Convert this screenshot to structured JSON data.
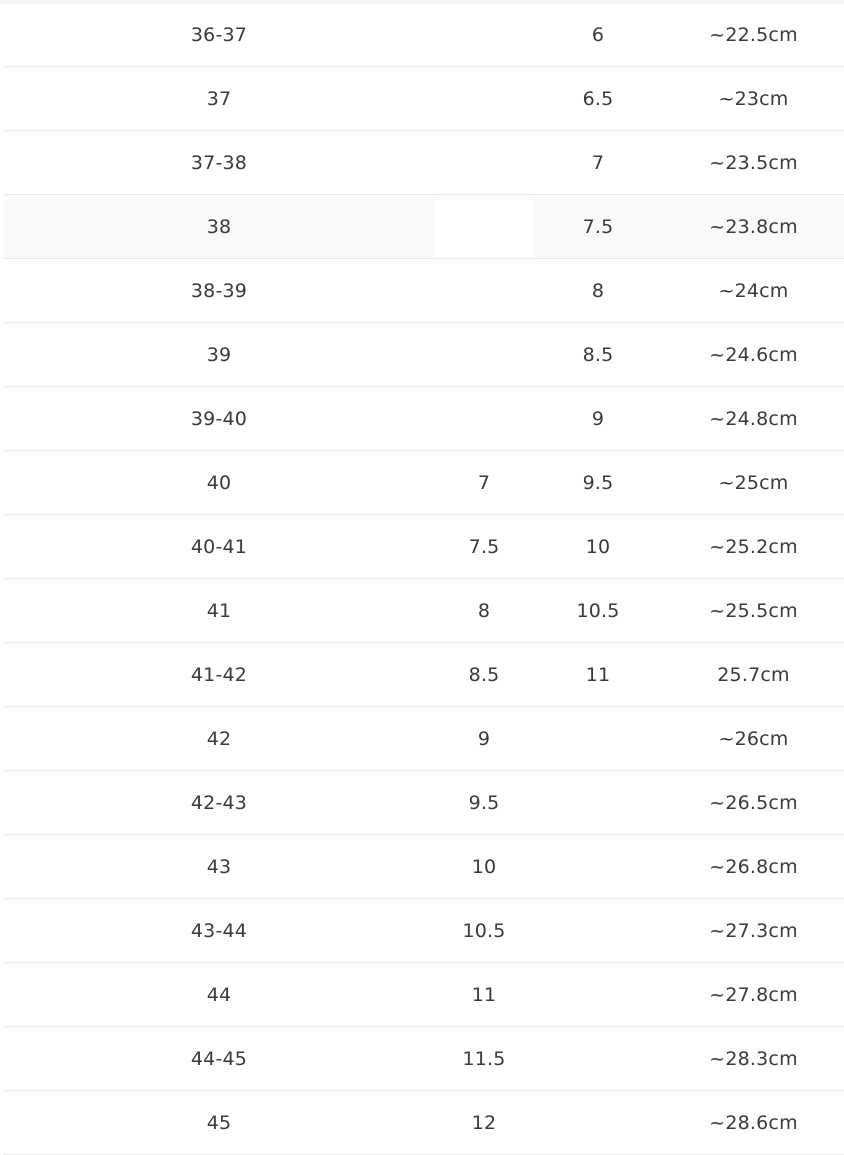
{
  "size_chart": {
    "rows": [
      {
        "eu": "36-37",
        "uk": "",
        "us": "6",
        "length": "~22.5cm"
      },
      {
        "eu": "37",
        "uk": "",
        "us": "6.5",
        "length": "~23cm"
      },
      {
        "eu": "37-38",
        "uk": "",
        "us": "7",
        "length": "~23.5cm"
      },
      {
        "eu": "38",
        "uk": "",
        "us": "7.5",
        "length": "~23.8cm"
      },
      {
        "eu": "38-39",
        "uk": "",
        "us": "8",
        "length": "~24cm"
      },
      {
        "eu": "39",
        "uk": "",
        "us": "8.5",
        "length": "~24.6cm"
      },
      {
        "eu": "39-40",
        "uk": "",
        "us": "9",
        "length": "~24.8cm"
      },
      {
        "eu": "40",
        "uk": "7",
        "us": "9.5",
        "length": "~25cm"
      },
      {
        "eu": "40-41",
        "uk": "7.5",
        "us": "10",
        "length": "~25.2cm"
      },
      {
        "eu": "41",
        "uk": "8",
        "us": "10.5",
        "length": "~25.5cm"
      },
      {
        "eu": "41-42",
        "uk": "8.5",
        "us": "11",
        "length": "25.7cm"
      },
      {
        "eu": "42",
        "uk": "9",
        "us": "",
        "length": "~26cm"
      },
      {
        "eu": "42-43",
        "uk": "9.5",
        "us": "",
        "length": "~26.5cm"
      },
      {
        "eu": "43",
        "uk": "10",
        "us": "",
        "length": "~26.8cm"
      },
      {
        "eu": "43-44",
        "uk": "10.5",
        "us": "",
        "length": "~27.3cm"
      },
      {
        "eu": "44",
        "uk": "11",
        "us": "",
        "length": "~27.8cm"
      },
      {
        "eu": "44-45",
        "uk": "11.5",
        "us": "",
        "length": "~28.3cm"
      },
      {
        "eu": "45",
        "uk": "12",
        "us": "",
        "length": "~28.6cm"
      }
    ]
  }
}
